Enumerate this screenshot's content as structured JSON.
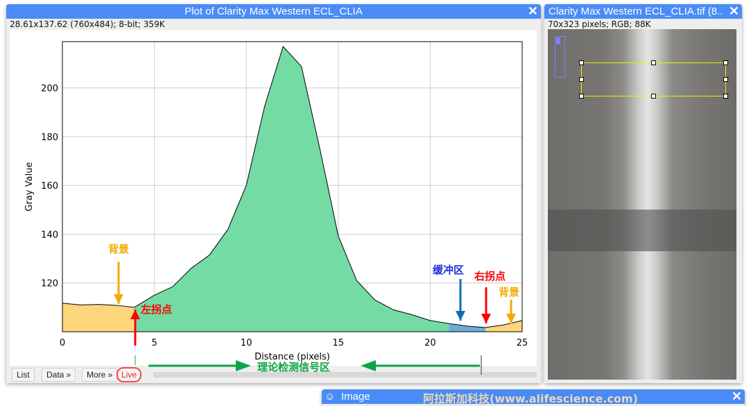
{
  "plot_window": {
    "title": "Plot of Clarity Max Western ECL_CLIA",
    "info": "28.61x137.62   (760x484); 8-bit; 359K",
    "close": "✕",
    "buttons": [
      "List",
      "Data »",
      "More »",
      "Live"
    ]
  },
  "image_window": {
    "title": "Clarity Max Western ECL_CLIA.tif (8...",
    "info": "70x323 pixels; RGB; 88K",
    "close": "✕"
  },
  "bottom_window": {
    "title": "Image",
    "close": "✕"
  },
  "watermark": "阿拉斯加科技(www.alifescience.com)",
  "annotations": {
    "bg_left": "背景",
    "left_inflection": "左拐点",
    "buffer": "缓冲区",
    "right_inflection": "右拐点",
    "bg_right": "背景",
    "signal_region": "理论检测信号区"
  },
  "colors": {
    "background_fill": "#fdd57a",
    "signal_fill": "#74dba4",
    "buffer_fill": "#6aaed6",
    "titlebar": "#4a8cf7"
  },
  "chart_data": {
    "type": "area",
    "xlabel": "Distance (pixels)",
    "ylabel": "Gray Value",
    "xlim": [
      0,
      25
    ],
    "ylim": [
      100,
      219
    ],
    "xticks": [
      0,
      5,
      10,
      15,
      20,
      25
    ],
    "yticks": [
      120,
      140,
      160,
      180,
      200
    ],
    "grid": true,
    "x": [
      0,
      1,
      2,
      3,
      3.9,
      5,
      6,
      7,
      8,
      9,
      10,
      11,
      12,
      13,
      14,
      15,
      16,
      17,
      18,
      19,
      20,
      21,
      22,
      23,
      24,
      25
    ],
    "y": [
      111.7,
      111,
      111.2,
      110.8,
      110,
      115,
      118.5,
      126,
      131.5,
      142,
      160,
      192.6,
      217,
      208.8,
      175,
      139.3,
      121,
      113,
      109,
      107,
      104.6,
      103.4,
      102.3,
      101.7,
      102.8,
      104.6
    ],
    "regions": [
      {
        "from": 0,
        "to": 3.9,
        "kind": "background"
      },
      {
        "from": 3.9,
        "to": 21,
        "kind": "signal"
      },
      {
        "from": 21,
        "to": 23,
        "kind": "buffer"
      },
      {
        "from": 23,
        "to": 25,
        "kind": "background"
      }
    ]
  }
}
